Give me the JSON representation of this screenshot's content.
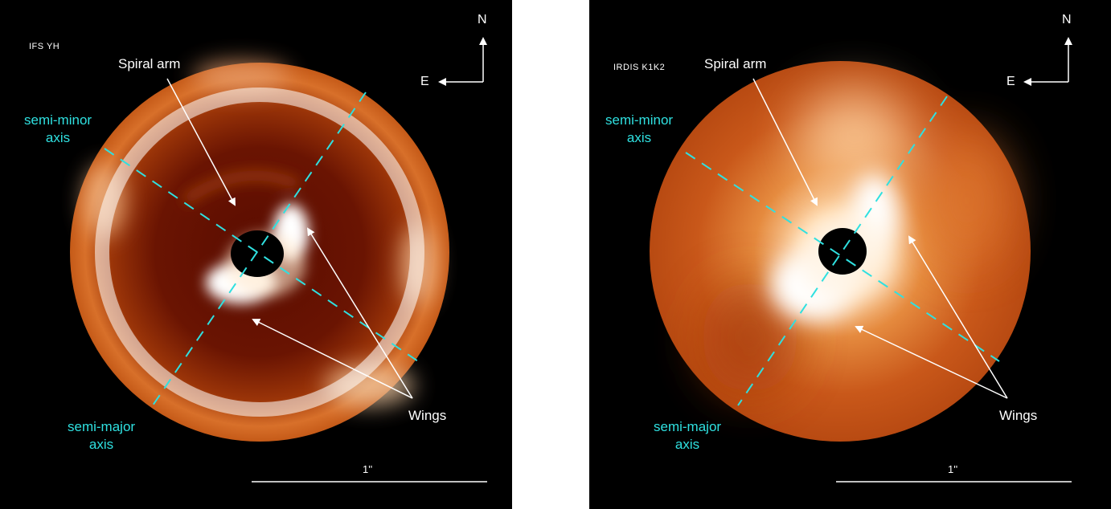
{
  "panels": [
    {
      "instrument": "IFS YH",
      "annotations": {
        "spiral_arm": "Spiral arm",
        "semi_minor": "semi-minor",
        "semi_minor_2": "axis",
        "semi_major": "semi-major",
        "semi_major_2": "axis",
        "wings": "Wings"
      },
      "compass": {
        "north": "N",
        "east": "E"
      },
      "scale_label": "1''"
    },
    {
      "instrument": "IRDIS K1K2",
      "annotations": {
        "spiral_arm": "Spiral arm",
        "semi_minor": "semi-minor",
        "semi_minor_2": "axis",
        "semi_major": "semi-major",
        "semi_major_2": "axis",
        "wings": "Wings"
      },
      "compass": {
        "north": "N",
        "east": "E"
      },
      "scale_label": "1''"
    }
  ],
  "colors": {
    "background": "#000000",
    "disk_warm": "#c85a1a",
    "disk_bright": "#fff1dc",
    "axis_lines": "#2fe0e0",
    "arrows": "#ffffff"
  }
}
